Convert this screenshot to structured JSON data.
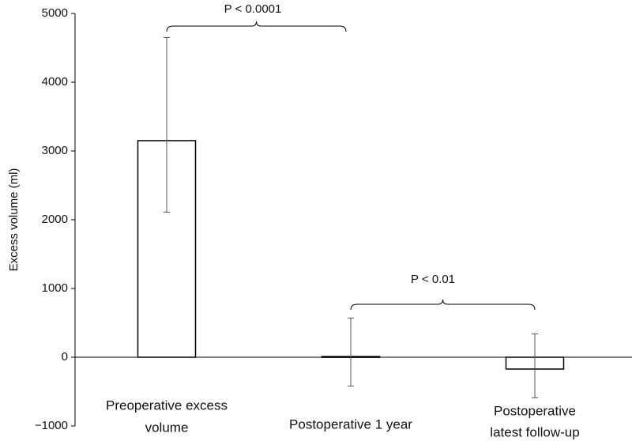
{
  "chart_data": {
    "type": "bar",
    "y_label": "Excess volume (ml)",
    "categories": [
      [
        "Preoperative excess",
        "volume"
      ],
      [
        "Postoperative 1 year"
      ],
      [
        "Postoperative",
        "latest follow-up"
      ]
    ],
    "values": [
      3150,
      10,
      -172
    ],
    "error_low": [
      2110,
      -420,
      -590
    ],
    "error_high": [
      4650,
      570,
      340
    ],
    "color": "#ffffff",
    "ylim": [
      -1000,
      5000
    ],
    "yticks": [
      {
        "value": -1000,
        "label": "−1000"
      },
      0,
      1000,
      2000,
      3000,
      4000,
      5000
    ],
    "annotations": [
      "P < 0.0001",
      "P < 0.01"
    ]
  }
}
